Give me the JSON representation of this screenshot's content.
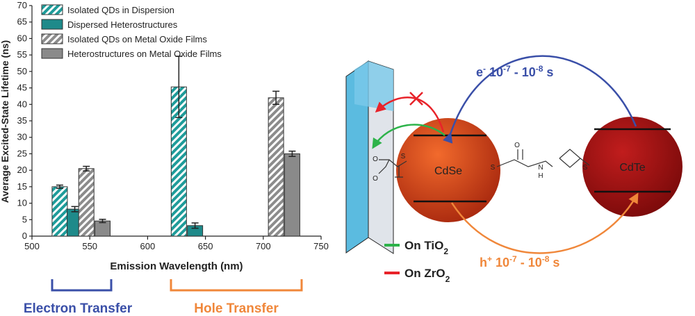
{
  "chart_data": {
    "type": "bar",
    "x_label": "Emission Wavelength (nm)",
    "y_label": "Average Excited-State Lifetime (ns)",
    "xlim": [
      500,
      750
    ],
    "xticks": [
      500,
      550,
      600,
      650,
      700,
      750
    ],
    "ylim": [
      0,
      70
    ],
    "yticks": [
      0,
      5,
      10,
      15,
      20,
      25,
      30,
      35,
      40,
      45,
      50,
      55,
      60,
      65,
      70
    ],
    "legend": "upper left",
    "series": [
      {
        "name": "Isolated QDs in Dispersion",
        "color": "#1f9c9a",
        "hatch": true,
        "x": [
          524,
          627
        ],
        "values": [
          15,
          45.3
        ],
        "errors": [
          0.5,
          9.3
        ]
      },
      {
        "name": "Dispersed Heterostructures",
        "color": "#1e8a8a",
        "hatch": false,
        "x": [
          537,
          641
        ],
        "values": [
          8.2,
          3.2
        ],
        "errors": [
          0.8,
          0.8
        ]
      },
      {
        "name": "Isolated QDs on Metal Oxide Films",
        "color": "#8c8c8c",
        "hatch": true,
        "x": [
          547,
          711
        ],
        "values": [
          20.5,
          42
        ],
        "errors": [
          0.7,
          2
        ]
      },
      {
        "name": "Heterostructures on Metal Oxide Films",
        "color": "#8a8a8a",
        "hatch": false,
        "x": [
          561,
          725
        ],
        "values": [
          4.6,
          25
        ],
        "errors": [
          0.5,
          0.8
        ]
      }
    ]
  },
  "annotations": {
    "electron_transfer": "Electron Transfer",
    "hole_transfer": "Hole Transfer"
  },
  "diagram": {
    "cdse": "CdSe",
    "cdte": "CdTe",
    "electron_rate": [
      "e",
      "-",
      " 10",
      "-7",
      " - 10",
      "-8",
      " s"
    ],
    "hole_rate": [
      "h",
      "+",
      " 10",
      "-7",
      " - 10",
      "-8",
      " s"
    ],
    "tio2": [
      "On TiO",
      "2"
    ],
    "zro2": [
      "On ZrO",
      "2"
    ],
    "atoms": [
      "S",
      "O",
      "O",
      "S",
      "O",
      "N",
      "H",
      "S"
    ]
  }
}
